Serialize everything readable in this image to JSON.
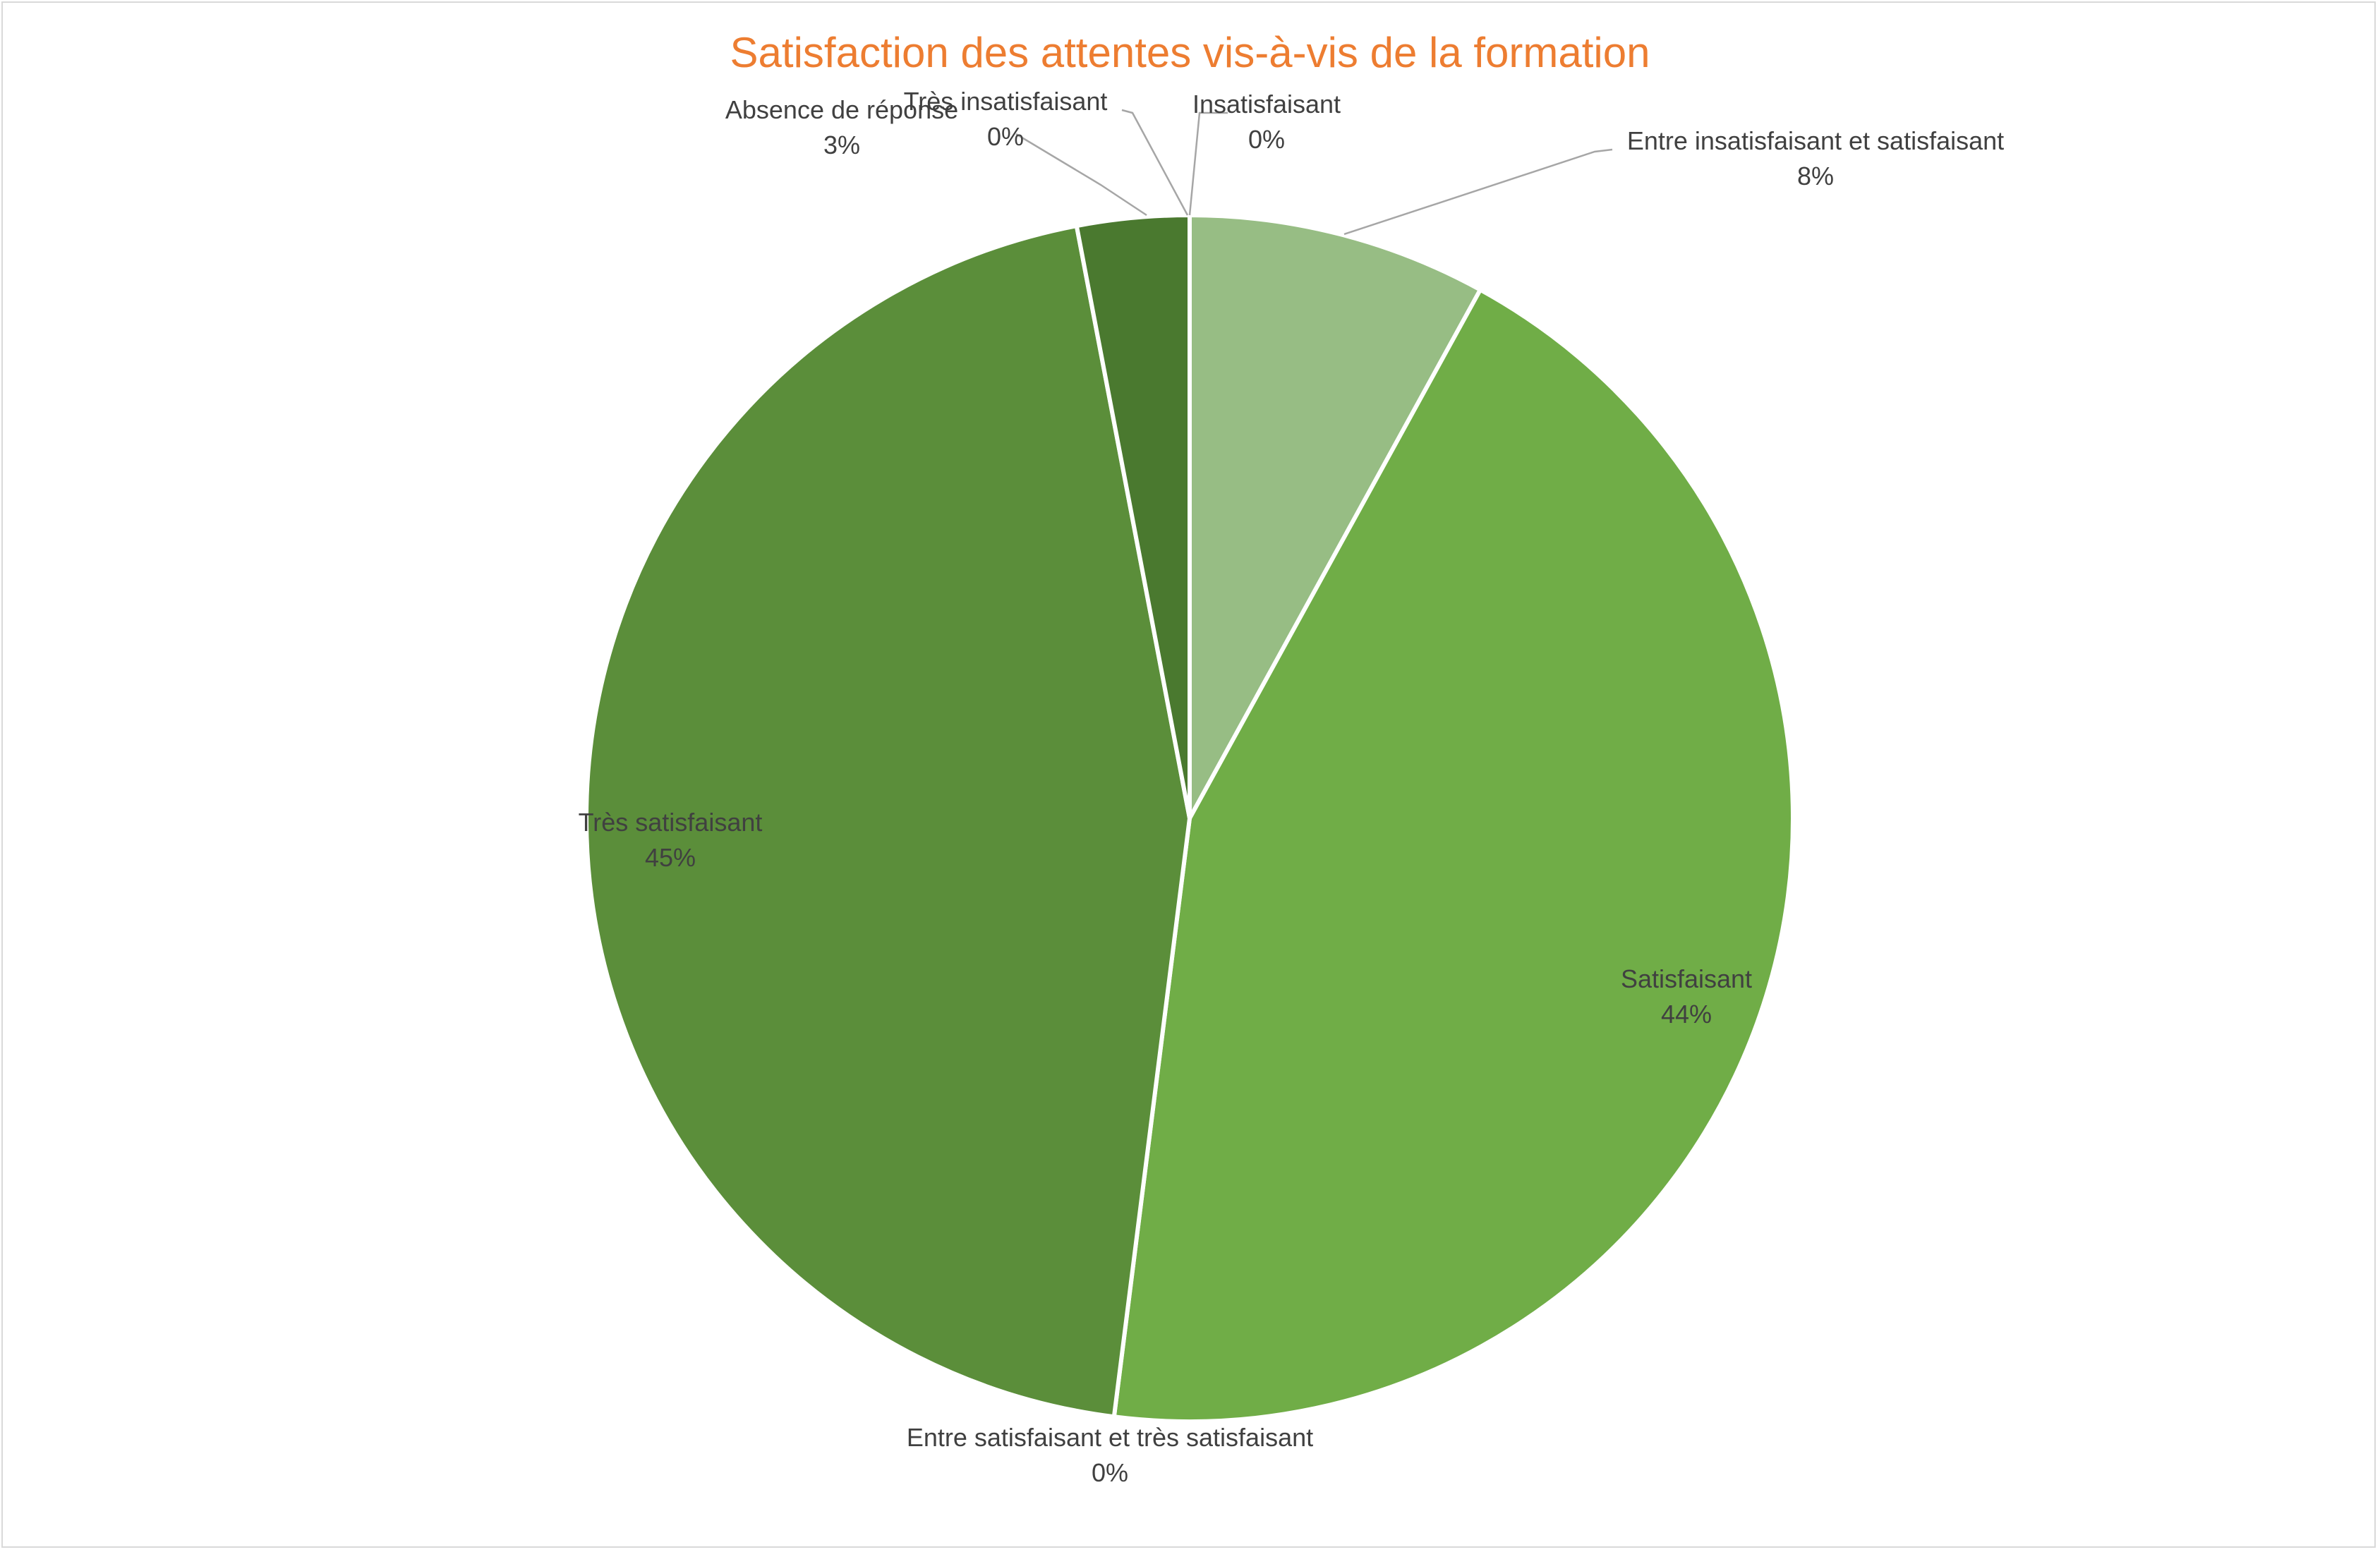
{
  "chart_data": {
    "type": "pie",
    "title": "Satisfaction des attentes vis-à-vis de la formation",
    "start_angle_deg": 0,
    "direction": "clockwise",
    "slices": [
      {
        "label": "Insatisfaisant",
        "value": 0,
        "pct_label": "0%",
        "color": "#c5e0b4"
      },
      {
        "label": "Entre insatisfaisant et satisfaisant",
        "value": 8,
        "pct_label": "8%",
        "color": "#97bd84"
      },
      {
        "label": "Satisfaisant",
        "value": 44,
        "pct_label": "44%",
        "color": "#70ad47"
      },
      {
        "label": "Entre satisfaisant et très satisfaisant",
        "value": 0,
        "pct_label": "0%",
        "color": "#6aa544"
      },
      {
        "label": "Très satisfaisant",
        "value": 45,
        "pct_label": "45%",
        "color": "#5b8e3a"
      },
      {
        "label": "Absence de réponse",
        "value": 3,
        "pct_label": "3%",
        "color": "#4a792f"
      },
      {
        "label": "Très insatisfaisant",
        "value": 0,
        "pct_label": "0%",
        "color": "#375623"
      }
    ],
    "leader_line_color": "#a6a6a6",
    "slice_border_color": "#ffffff"
  }
}
